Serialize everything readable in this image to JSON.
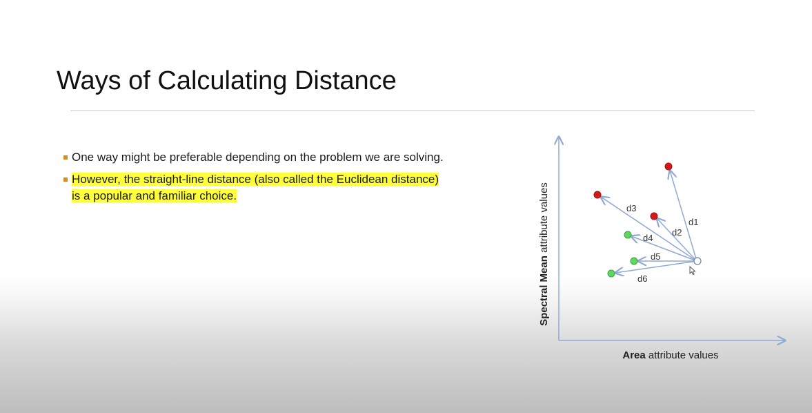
{
  "slide": {
    "title": "Ways of Calculating Distance",
    "bullets": [
      {
        "text": "One way might be preferable depending on the problem we are solving.",
        "highlighted": false
      },
      {
        "text": "However, the straight-line distance (also called the Euclidean distance) is a popular and familiar choice.",
        "highlighted": true,
        "lines": [
          "However, the straight-line distance (also called the Euclidean distance)",
          "is a popular and familiar choice."
        ]
      }
    ]
  },
  "diagram": {
    "y_axis_label_bold": "Spectral Mean",
    "y_axis_label_rest": " attribute values",
    "x_axis_label_bold": "Area",
    "x_axis_label_rest": " attribute values",
    "distance_labels": [
      "d1",
      "d2",
      "d3",
      "d4",
      "d5",
      "d6"
    ],
    "colors": {
      "red_point": "#d21a1a",
      "green_point": "#5fd65f",
      "arrow": "#8fa9d4",
      "axis": "#8fa9d4",
      "highlight": "#ffff3a",
      "bullet_marker": "#d98a1e"
    }
  }
}
